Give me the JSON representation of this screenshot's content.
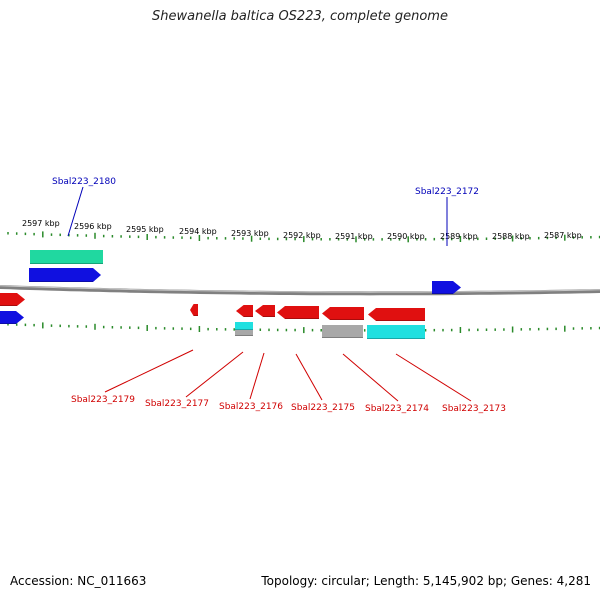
{
  "title": "Shewanella baltica OS223, complete genome",
  "footer": {
    "accession": "Accession: NC_011663",
    "info": "Topology: circular; Length: 5,145,902 bp; Genes: 4,281"
  },
  "colors": {
    "forward_cds": "#1010e0",
    "reverse_cds": "#e01010",
    "rna_green": "#20d8a0",
    "rna_cyan": "#20e0e0",
    "gray": "#a8a8a8",
    "ticks": "#2a8a2a",
    "backbone": "#808080",
    "top_label": "#0000b8",
    "bottom_label": "#d00000"
  },
  "scale_labels": [
    "2597 kbp",
    "2596 kbp",
    "2595 kbp",
    "2594 kbp",
    "2593 kbp",
    "2592 kbp",
    "2591 kbp",
    "2590 kbp",
    "2589 kbp",
    "2588 kbp",
    "2587 kbp"
  ],
  "top_genes": [
    "Sbal223_2180",
    "Sbal223_2172"
  ],
  "bottom_genes": [
    "Sbal223_2179",
    "Sbal223_2177",
    "Sbal223_2176",
    "Sbal223_2175",
    "Sbal223_2174",
    "Sbal223_2173"
  ]
}
